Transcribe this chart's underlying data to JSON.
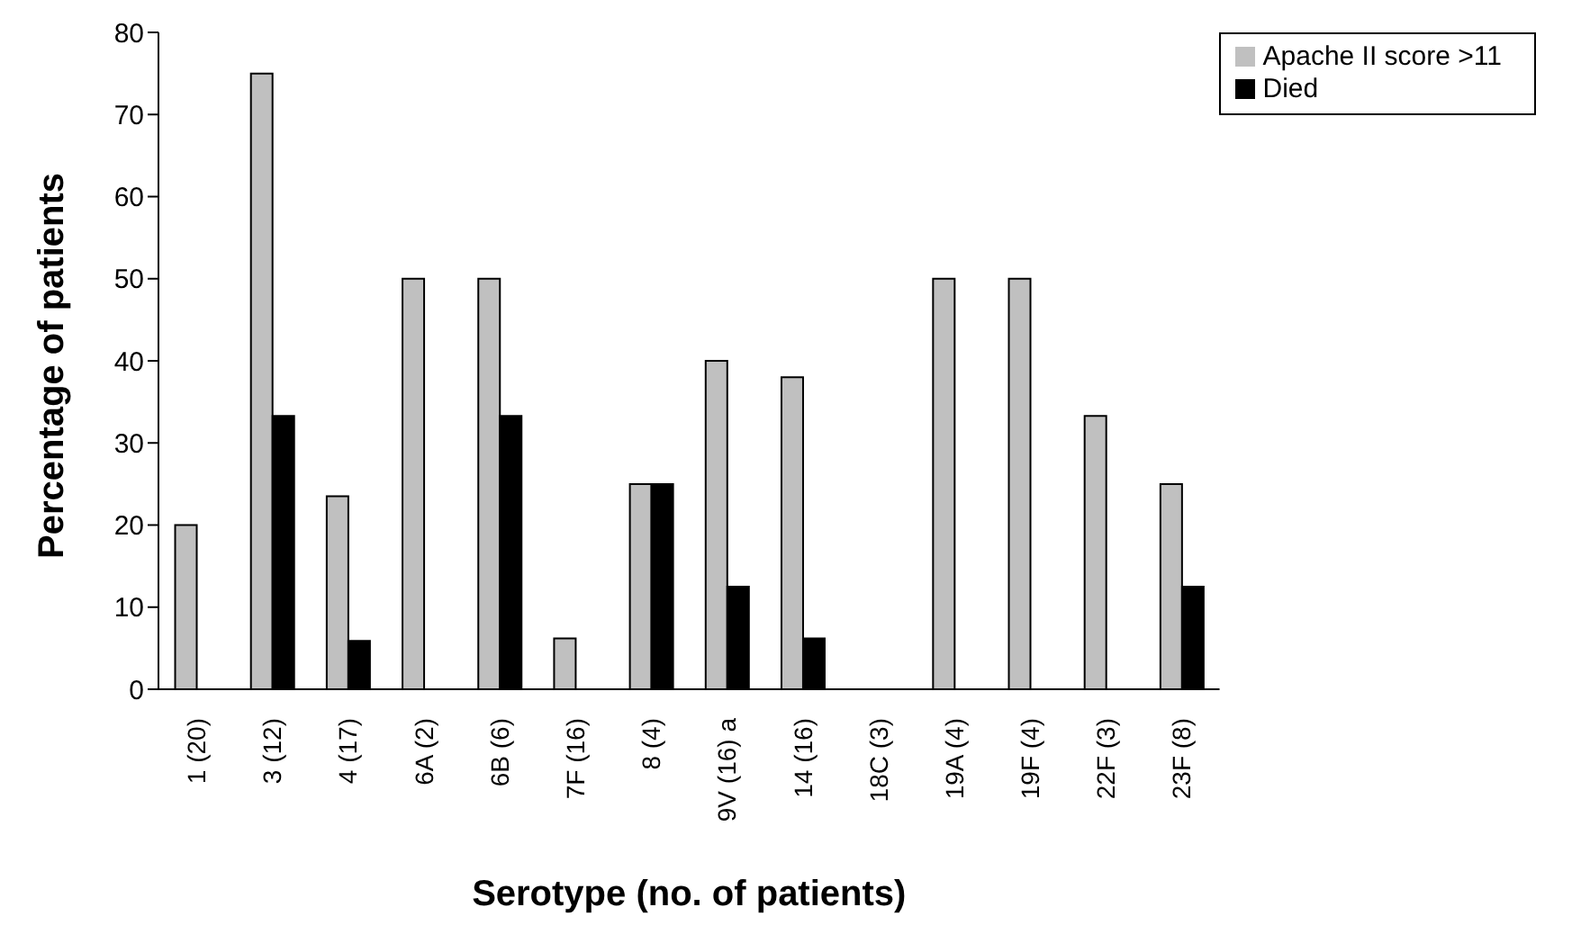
{
  "chart_data": {
    "type": "bar",
    "xlabel": "Serotype (no. of patients)",
    "ylabel": "Percentage of patients",
    "categories": [
      "1 (20)",
      "3 (12)",
      "4 (17)",
      "6A (2)",
      "6B (6)",
      "7F (16)",
      "8 (4)",
      "9V (16) a",
      "14 (16)",
      "18C (3)",
      "19A (4)",
      "19F (4)",
      "22F (3)",
      "23F (8)"
    ],
    "series": [
      {
        "name": "Apache II score >11",
        "color": "#c0c0c0",
        "values": [
          20,
          75,
          23.5,
          50,
          50,
          6.2,
          25,
          40,
          38,
          0,
          50,
          50,
          33.3,
          25
        ]
      },
      {
        "name": "Died",
        "color": "#000000",
        "values": [
          0,
          33.3,
          5.9,
          0,
          33.3,
          0,
          25,
          12.5,
          6.2,
          0,
          0,
          0,
          0,
          12.5
        ]
      }
    ],
    "ylim": [
      0,
      80
    ],
    "yticks": [
      0,
      10,
      20,
      30,
      40,
      50,
      60,
      70,
      80
    ],
    "grid": false,
    "legend": "top right"
  }
}
